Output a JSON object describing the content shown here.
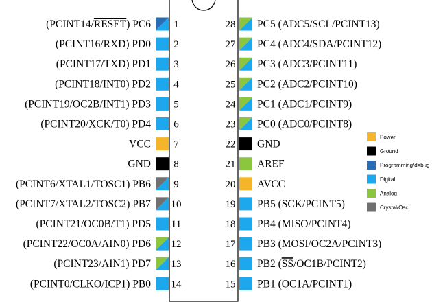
{
  "colors": {
    "power": "#F5B52A",
    "ground": "#000000",
    "programming": "#2A6DB5",
    "digital": "#1DA8EE",
    "analog": "#8CC63F",
    "crystal": "#707070"
  },
  "left_pins": [
    {
      "number": "1",
      "label": "(PCINT14/RESET) PC6",
      "overline": "RESET",
      "types": [
        "programming",
        "digital"
      ]
    },
    {
      "number": "2",
      "label": "(PCINT16/RXD) PD0",
      "types": [
        "digital"
      ]
    },
    {
      "number": "3",
      "label": "(PCINT17/TXD) PD1",
      "types": [
        "digital"
      ]
    },
    {
      "number": "4",
      "label": "(PCINT18/INT0) PD2",
      "types": [
        "digital"
      ]
    },
    {
      "number": "5",
      "label": "(PCINT19/OC2B/INT1) PD3",
      "types": [
        "digital"
      ]
    },
    {
      "number": "6",
      "label": "(PCINT20/XCK/T0) PD4",
      "types": [
        "digital"
      ]
    },
    {
      "number": "7",
      "label": "VCC",
      "types": [
        "power"
      ]
    },
    {
      "number": "8",
      "label": "GND",
      "types": [
        "ground"
      ]
    },
    {
      "number": "9",
      "label": "(PCINT6/XTAL1/TOSC1) PB6",
      "types": [
        "crystal",
        "digital"
      ]
    },
    {
      "number": "10",
      "label": "(PCINT7/XTAL2/TOSC2) PB7",
      "types": [
        "crystal",
        "digital"
      ]
    },
    {
      "number": "11",
      "label": "(PCINT21/OC0B/T1) PD5",
      "types": [
        "digital"
      ]
    },
    {
      "number": "12",
      "label": "(PCINT22/OC0A/AIN0) PD6",
      "types": [
        "analog",
        "digital"
      ]
    },
    {
      "number": "13",
      "label": "(PCINT23/AIN1) PD7",
      "types": [
        "analog",
        "digital"
      ]
    },
    {
      "number": "14",
      "label": "(PCINT0/CLKO/ICP1) PB0",
      "types": [
        "digital"
      ]
    }
  ],
  "right_pins": [
    {
      "number": "28",
      "label": "PC5 (ADC5/SCL/PCINT13)",
      "types": [
        "analog",
        "digital"
      ]
    },
    {
      "number": "27",
      "label": "PC4 (ADC4/SDA/PCINT12)",
      "types": [
        "analog",
        "digital"
      ]
    },
    {
      "number": "26",
      "label": "PC3 (ADC3/PCINT11)",
      "types": [
        "analog",
        "digital"
      ]
    },
    {
      "number": "25",
      "label": "PC2 (ADC2/PCINT10)",
      "types": [
        "analog",
        "digital"
      ]
    },
    {
      "number": "24",
      "label": "PC1 (ADC1/PCINT9)",
      "types": [
        "analog",
        "digital"
      ]
    },
    {
      "number": "23",
      "label": "PC0 (ADC0/PCINT8)",
      "types": [
        "analog",
        "digital"
      ]
    },
    {
      "number": "22",
      "label": "GND",
      "types": [
        "ground"
      ]
    },
    {
      "number": "21",
      "label": "AREF",
      "types": [
        "analog"
      ]
    },
    {
      "number": "20",
      "label": "AVCC",
      "types": [
        "power"
      ]
    },
    {
      "number": "19",
      "label": "PB5 (SCK/PCINT5)",
      "types": [
        "digital"
      ]
    },
    {
      "number": "18",
      "label": "PB4 (MISO/PCINT4)",
      "types": [
        "digital"
      ]
    },
    {
      "number": "17",
      "label": "PB3 (MOSI/OC2A/PCINT3)",
      "types": [
        "digital"
      ]
    },
    {
      "number": "16",
      "label": "PB2 (SS/OC1B/PCINT2)",
      "overline": "SS",
      "types": [
        "digital"
      ]
    },
    {
      "number": "15",
      "label": "PB1 (OC1A/PCINT1)",
      "types": [
        "digital"
      ]
    }
  ],
  "legend": [
    {
      "key": "power",
      "label": "Power"
    },
    {
      "key": "ground",
      "label": "Ground"
    },
    {
      "key": "programming",
      "label": "Programming/debug"
    },
    {
      "key": "digital",
      "label": "Digital"
    },
    {
      "key": "analog",
      "label": "Analog"
    },
    {
      "key": "crystal",
      "label": "Crystal/Osc"
    }
  ]
}
